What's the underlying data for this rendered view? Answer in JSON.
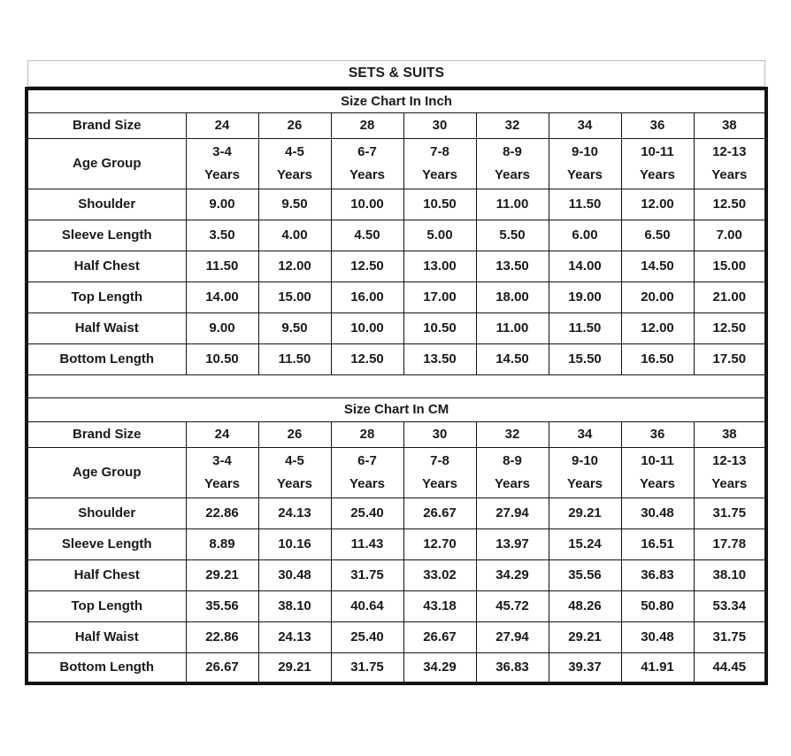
{
  "title": "SETS & SUITS",
  "sections": [
    {
      "heading": "Size Chart In Inch",
      "brand_size_label": "Brand Size",
      "sizes": [
        "24",
        "26",
        "28",
        "30",
        "32",
        "34",
        "36",
        "38"
      ],
      "age_group_label": "Age Group",
      "age_groups": [
        "3-4",
        "4-5",
        "6-7",
        "7-8",
        "8-9",
        "9-10",
        "10-11",
        "12-13"
      ],
      "age_suffix": "Years",
      "rows": [
        {
          "label": "Shoulder",
          "values": [
            "9.00",
            "9.50",
            "10.00",
            "10.50",
            "11.00",
            "11.50",
            "12.00",
            "12.50"
          ]
        },
        {
          "label": "Sleeve Length",
          "values": [
            "3.50",
            "4.00",
            "4.50",
            "5.00",
            "5.50",
            "6.00",
            "6.50",
            "7.00"
          ]
        },
        {
          "label": "Half Chest",
          "values": [
            "11.50",
            "12.00",
            "12.50",
            "13.00",
            "13.50",
            "14.00",
            "14.50",
            "15.00"
          ]
        },
        {
          "label": "Top Length",
          "values": [
            "14.00",
            "15.00",
            "16.00",
            "17.00",
            "18.00",
            "19.00",
            "20.00",
            "21.00"
          ]
        },
        {
          "label": "Half Waist",
          "values": [
            "9.00",
            "9.50",
            "10.00",
            "10.50",
            "11.00",
            "11.50",
            "12.00",
            "12.50"
          ]
        },
        {
          "label": "Bottom Length",
          "values": [
            "10.50",
            "11.50",
            "12.50",
            "13.50",
            "14.50",
            "15.50",
            "16.50",
            "17.50"
          ]
        }
      ]
    },
    {
      "heading": "Size Chart In CM",
      "brand_size_label": "Brand Size",
      "sizes": [
        "24",
        "26",
        "28",
        "30",
        "32",
        "34",
        "36",
        "38"
      ],
      "age_group_label": "Age Group",
      "age_groups": [
        "3-4",
        "4-5",
        "6-7",
        "7-8",
        "8-9",
        "9-10",
        "10-11",
        "12-13"
      ],
      "age_suffix": "Years",
      "rows": [
        {
          "label": "Shoulder",
          "values": [
            "22.86",
            "24.13",
            "25.40",
            "26.67",
            "27.94",
            "29.21",
            "30.48",
            "31.75"
          ]
        },
        {
          "label": "Sleeve Length",
          "values": [
            "8.89",
            "10.16",
            "11.43",
            "12.70",
            "13.97",
            "15.24",
            "16.51",
            "17.78"
          ]
        },
        {
          "label": "Half Chest",
          "values": [
            "29.21",
            "30.48",
            "31.75",
            "33.02",
            "34.29",
            "35.56",
            "36.83",
            "38.10"
          ]
        },
        {
          "label": "Top Length",
          "values": [
            "35.56",
            "38.10",
            "40.64",
            "43.18",
            "45.72",
            "48.26",
            "50.80",
            "53.34"
          ]
        },
        {
          "label": "Half Waist",
          "values": [
            "22.86",
            "24.13",
            "25.40",
            "26.67",
            "27.94",
            "29.21",
            "30.48",
            "31.75"
          ]
        },
        {
          "label": "Bottom Length",
          "values": [
            "26.67",
            "29.21",
            "31.75",
            "34.29",
            "36.83",
            "39.37",
            "41.91",
            "44.45"
          ]
        }
      ]
    }
  ],
  "chart_data": {
    "type": "table",
    "title": "SETS & SUITS",
    "tables": [
      {
        "title": "Size Chart In Inch",
        "columns": [
          "Brand Size",
          "24",
          "26",
          "28",
          "30",
          "32",
          "34",
          "36",
          "38"
        ],
        "rows": [
          [
            "Age Group",
            "3-4 Years",
            "4-5 Years",
            "6-7 Years",
            "7-8 Years",
            "8-9 Years",
            "9-10 Years",
            "10-11 Years",
            "12-13 Years"
          ],
          [
            "Shoulder",
            9.0,
            9.5,
            10.0,
            10.5,
            11.0,
            11.5,
            12.0,
            12.5
          ],
          [
            "Sleeve Length",
            3.5,
            4.0,
            4.5,
            5.0,
            5.5,
            6.0,
            6.5,
            7.0
          ],
          [
            "Half Chest",
            11.5,
            12.0,
            12.5,
            13.0,
            13.5,
            14.0,
            14.5,
            15.0
          ],
          [
            "Top Length",
            14.0,
            15.0,
            16.0,
            17.0,
            18.0,
            19.0,
            20.0,
            21.0
          ],
          [
            "Half Waist",
            9.0,
            9.5,
            10.0,
            10.5,
            11.0,
            11.5,
            12.0,
            12.5
          ],
          [
            "Bottom Length",
            10.5,
            11.5,
            12.5,
            13.5,
            14.5,
            15.5,
            16.5,
            17.5
          ]
        ]
      },
      {
        "title": "Size Chart In CM",
        "columns": [
          "Brand Size",
          "24",
          "26",
          "28",
          "30",
          "32",
          "34",
          "36",
          "38"
        ],
        "rows": [
          [
            "Age Group",
            "3-4 Years",
            "4-5 Years",
            "6-7 Years",
            "7-8 Years",
            "8-9 Years",
            "9-10 Years",
            "10-11 Years",
            "12-13 Years"
          ],
          [
            "Shoulder",
            22.86,
            24.13,
            25.4,
            26.67,
            27.94,
            29.21,
            30.48,
            31.75
          ],
          [
            "Sleeve Length",
            8.89,
            10.16,
            11.43,
            12.7,
            13.97,
            15.24,
            16.51,
            17.78
          ],
          [
            "Half Chest",
            29.21,
            30.48,
            31.75,
            33.02,
            34.29,
            35.56,
            36.83,
            38.1
          ],
          [
            "Top Length",
            35.56,
            38.1,
            40.64,
            43.18,
            45.72,
            48.26,
            50.8,
            53.34
          ],
          [
            "Half Waist",
            22.86,
            24.13,
            25.4,
            26.67,
            27.94,
            29.21,
            30.48,
            31.75
          ],
          [
            "Bottom Length",
            26.67,
            29.21,
            31.75,
            34.29,
            36.83,
            39.37,
            41.91,
            44.45
          ]
        ]
      }
    ]
  }
}
